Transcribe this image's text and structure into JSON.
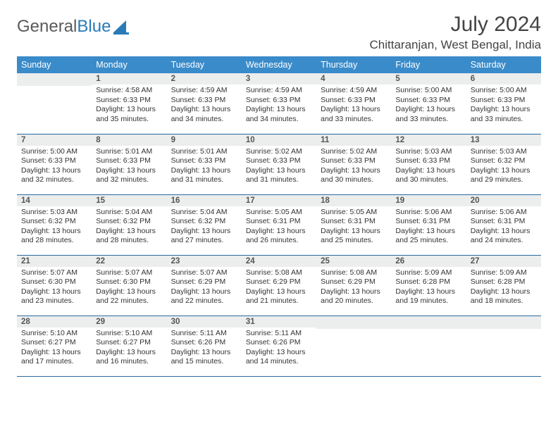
{
  "logo": {
    "text_gray": "General",
    "text_blue": "Blue",
    "icon_color": "#2a7ab8"
  },
  "header": {
    "month_title": "July 2024",
    "location": "Chittaranjan, West Bengal, India"
  },
  "colors": {
    "header_bg": "#3a8bc9",
    "header_text": "#ffffff",
    "daynum_bg": "#eceded",
    "border": "#2a6aa0"
  },
  "week_headers": [
    "Sunday",
    "Monday",
    "Tuesday",
    "Wednesday",
    "Thursday",
    "Friday",
    "Saturday"
  ],
  "first_weekday": 1,
  "num_days": 31,
  "days": {
    "1": {
      "sunrise": "4:58 AM",
      "sunset": "6:33 PM",
      "daylight": "13 hours and 35 minutes."
    },
    "2": {
      "sunrise": "4:59 AM",
      "sunset": "6:33 PM",
      "daylight": "13 hours and 34 minutes."
    },
    "3": {
      "sunrise": "4:59 AM",
      "sunset": "6:33 PM",
      "daylight": "13 hours and 34 minutes."
    },
    "4": {
      "sunrise": "4:59 AM",
      "sunset": "6:33 PM",
      "daylight": "13 hours and 33 minutes."
    },
    "5": {
      "sunrise": "5:00 AM",
      "sunset": "6:33 PM",
      "daylight": "13 hours and 33 minutes."
    },
    "6": {
      "sunrise": "5:00 AM",
      "sunset": "6:33 PM",
      "daylight": "13 hours and 33 minutes."
    },
    "7": {
      "sunrise": "5:00 AM",
      "sunset": "6:33 PM",
      "daylight": "13 hours and 32 minutes."
    },
    "8": {
      "sunrise": "5:01 AM",
      "sunset": "6:33 PM",
      "daylight": "13 hours and 32 minutes."
    },
    "9": {
      "sunrise": "5:01 AM",
      "sunset": "6:33 PM",
      "daylight": "13 hours and 31 minutes."
    },
    "10": {
      "sunrise": "5:02 AM",
      "sunset": "6:33 PM",
      "daylight": "13 hours and 31 minutes."
    },
    "11": {
      "sunrise": "5:02 AM",
      "sunset": "6:33 PM",
      "daylight": "13 hours and 30 minutes."
    },
    "12": {
      "sunrise": "5:03 AM",
      "sunset": "6:33 PM",
      "daylight": "13 hours and 30 minutes."
    },
    "13": {
      "sunrise": "5:03 AM",
      "sunset": "6:32 PM",
      "daylight": "13 hours and 29 minutes."
    },
    "14": {
      "sunrise": "5:03 AM",
      "sunset": "6:32 PM",
      "daylight": "13 hours and 28 minutes."
    },
    "15": {
      "sunrise": "5:04 AM",
      "sunset": "6:32 PM",
      "daylight": "13 hours and 28 minutes."
    },
    "16": {
      "sunrise": "5:04 AM",
      "sunset": "6:32 PM",
      "daylight": "13 hours and 27 minutes."
    },
    "17": {
      "sunrise": "5:05 AM",
      "sunset": "6:31 PM",
      "daylight": "13 hours and 26 minutes."
    },
    "18": {
      "sunrise": "5:05 AM",
      "sunset": "6:31 PM",
      "daylight": "13 hours and 25 minutes."
    },
    "19": {
      "sunrise": "5:06 AM",
      "sunset": "6:31 PM",
      "daylight": "13 hours and 25 minutes."
    },
    "20": {
      "sunrise": "5:06 AM",
      "sunset": "6:31 PM",
      "daylight": "13 hours and 24 minutes."
    },
    "21": {
      "sunrise": "5:07 AM",
      "sunset": "6:30 PM",
      "daylight": "13 hours and 23 minutes."
    },
    "22": {
      "sunrise": "5:07 AM",
      "sunset": "6:30 PM",
      "daylight": "13 hours and 22 minutes."
    },
    "23": {
      "sunrise": "5:07 AM",
      "sunset": "6:29 PM",
      "daylight": "13 hours and 22 minutes."
    },
    "24": {
      "sunrise": "5:08 AM",
      "sunset": "6:29 PM",
      "daylight": "13 hours and 21 minutes."
    },
    "25": {
      "sunrise": "5:08 AM",
      "sunset": "6:29 PM",
      "daylight": "13 hours and 20 minutes."
    },
    "26": {
      "sunrise": "5:09 AM",
      "sunset": "6:28 PM",
      "daylight": "13 hours and 19 minutes."
    },
    "27": {
      "sunrise": "5:09 AM",
      "sunset": "6:28 PM",
      "daylight": "13 hours and 18 minutes."
    },
    "28": {
      "sunrise": "5:10 AM",
      "sunset": "6:27 PM",
      "daylight": "13 hours and 17 minutes."
    },
    "29": {
      "sunrise": "5:10 AM",
      "sunset": "6:27 PM",
      "daylight": "13 hours and 16 minutes."
    },
    "30": {
      "sunrise": "5:11 AM",
      "sunset": "6:26 PM",
      "daylight": "13 hours and 15 minutes."
    },
    "31": {
      "sunrise": "5:11 AM",
      "sunset": "6:26 PM",
      "daylight": "13 hours and 14 minutes."
    }
  },
  "labels": {
    "sunrise": "Sunrise: ",
    "sunset": "Sunset: ",
    "daylight": "Daylight: "
  }
}
